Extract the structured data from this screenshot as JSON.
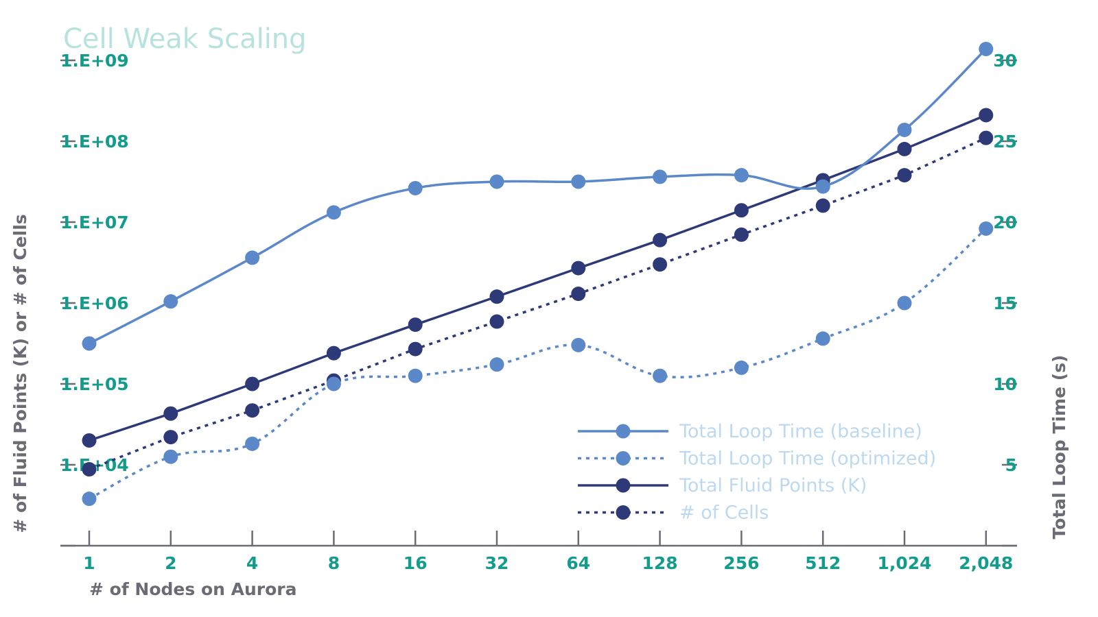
{
  "chart_data": {
    "type": "line",
    "title": "Cell Weak Scaling",
    "xlabel": "#  of Nodes on Aurora",
    "ylabel_left": "#  of Fluid Points (K) or # of Cells",
    "ylabel_right": "Total Loop Time (s)",
    "categories": [
      "1",
      "2",
      "4",
      "8",
      "16",
      "32",
      "64",
      "128",
      "256",
      "512",
      "1,024",
      "2,048"
    ],
    "y_left": {
      "scale": "log",
      "range": [
        1000,
        1000000000
      ],
      "ticks": [
        "1.E+04",
        "1.E+05",
        "1.E+06",
        "1.E+07",
        "1.E+08",
        "1.E+09"
      ]
    },
    "y_right": {
      "scale": "linear",
      "range": [
        0,
        30
      ],
      "ticks": [
        "5",
        "10",
        "15",
        "20",
        "25",
        "30"
      ]
    },
    "legend_position": "bottom-right",
    "grid": false,
    "series": [
      {
        "name": "Total Loop Time (baseline)",
        "axis": "right",
        "style": "solid",
        "smooth": true,
        "color": "#5b88c9",
        "values": [
          12.5,
          15.1,
          17.8,
          20.6,
          22.1,
          22.5,
          22.5,
          22.8,
          22.9,
          22.2,
          25.7,
          30.7
        ]
      },
      {
        "name": "Total Loop Time (optimized)",
        "axis": "right",
        "style": "dotted",
        "smooth": true,
        "color": "#5b88c9",
        "values": [
          2.9,
          5.5,
          6.3,
          10.0,
          10.5,
          11.2,
          12.4,
          10.5,
          11.0,
          12.8,
          15.0,
          19.6
        ]
      },
      {
        "name": "Total Fluid Points (K)",
        "axis": "left",
        "style": "solid",
        "smooth": false,
        "color": "#2e3a78",
        "values": [
          20000,
          43000,
          100000,
          240000,
          540000,
          1200000,
          2700000,
          6000000,
          14000000,
          33000000,
          80000000,
          210000000
        ]
      },
      {
        "name": "#  of Cells",
        "axis": "left",
        "style": "dotted",
        "smooth": false,
        "color": "#2e3a78",
        "values": [
          8800,
          22000,
          47000,
          110000,
          270000,
          590000,
          1300000,
          3000000,
          7000000,
          16000000,
          38000000,
          110000000
        ]
      }
    ]
  }
}
